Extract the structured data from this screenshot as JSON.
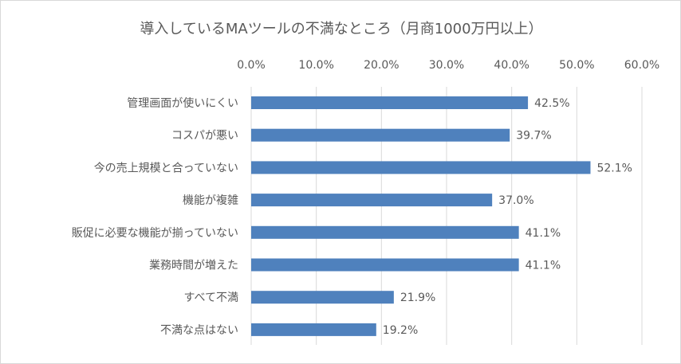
{
  "chart_data": {
    "type": "bar",
    "orientation": "horizontal",
    "title": "導入しているMAツールの不満なところ（月商1000万円以上）",
    "categories": [
      "管理画面が使いにくい",
      "コスパが悪い",
      "今の売上規模と合っていない",
      "機能が複雑",
      "販促に必要な機能が揃っていない",
      "業務時間が増えた",
      "すべて不満",
      "不満な点はない"
    ],
    "values": [
      42.5,
      39.7,
      52.1,
      37.0,
      41.1,
      41.1,
      21.9,
      19.2
    ],
    "value_labels": [
      "42.5%",
      "39.7%",
      "52.1%",
      "37.0%",
      "41.1%",
      "41.1%",
      "21.9%",
      "19.2%"
    ],
    "xlim": [
      0,
      60
    ],
    "x_ticks": [
      "0.0%",
      "10.0%",
      "20.0%",
      "30.0%",
      "40.0%",
      "50.0%",
      "60.0%"
    ],
    "x_axis_position": "top",
    "grid": true,
    "legend": "none",
    "colors": {
      "bar": "#4f81bd",
      "grid": "#d9d9d9",
      "text": "#595959"
    }
  }
}
